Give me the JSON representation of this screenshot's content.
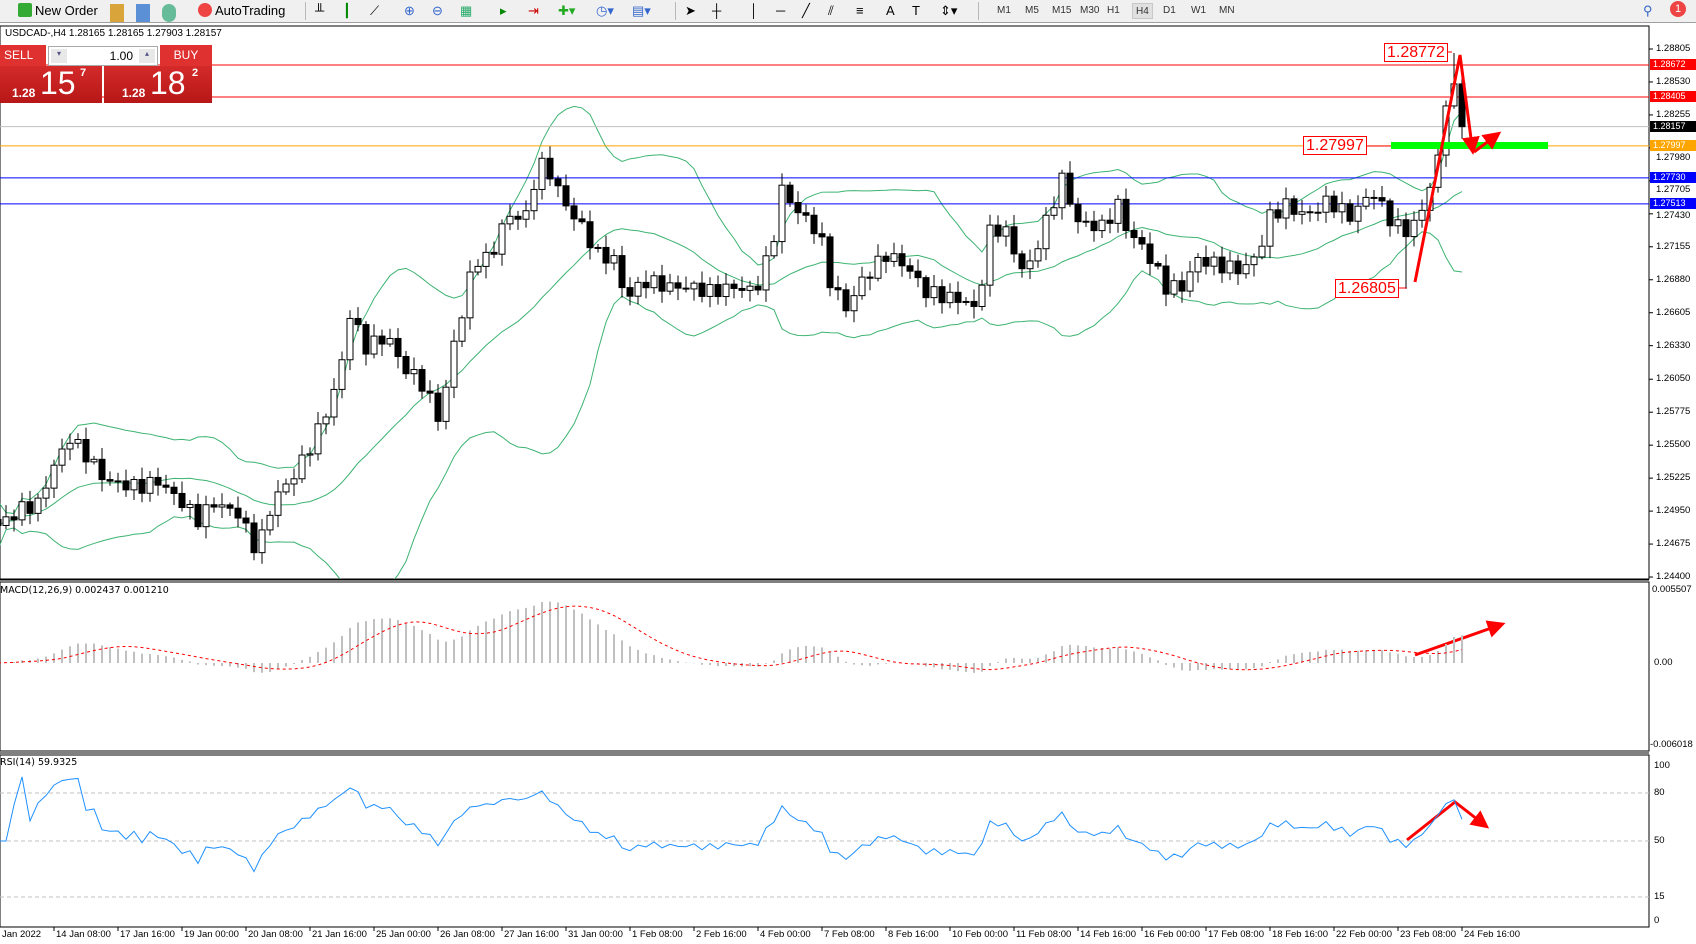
{
  "toolbar": {
    "new_order": "New Order",
    "autotrading": "AutoTrading",
    "timeframes": [
      "M1",
      "M5",
      "M15",
      "M30",
      "H1",
      "H4",
      "D1",
      "W1",
      "MN"
    ],
    "active_timeframe": "H4",
    "notification_count": "1"
  },
  "chart_title": "USDCAD-,H4  1.28165 1.28165 1.27903 1.28157",
  "trade_panel": {
    "sell": "SELL",
    "buy": "BUY",
    "lot": "1.00",
    "sell_small": "1.28",
    "sell_big": "15",
    "sell_sup": "7",
    "buy_small": "1.28",
    "buy_big": "18",
    "buy_sup": "2"
  },
  "colors": {
    "bull_bear": "#000000",
    "bands": "#3cb371",
    "macd_hist": "#c0c0c0",
    "macd_signal": "#ff0000",
    "rsi": "#1e90ff",
    "annotation": "#ff0000",
    "zone": "#00ff00"
  },
  "chart_data": {
    "type": "candlestick",
    "symbol": "USDCAD-",
    "timeframe": "H4",
    "price_ticks": [
      "1.28805",
      "1.28530",
      "1.28255",
      "1.27980",
      "1.27705",
      "1.27430",
      "1.27155",
      "1.26880",
      "1.26605",
      "1.26330",
      "1.26050",
      "1.25775",
      "1.25500",
      "1.25225",
      "1.24950",
      "1.24675",
      "1.24400"
    ],
    "ylim": [
      1.244,
      1.28805
    ],
    "time_labels": [
      "Jan 2022",
      "14 Jan 08:00",
      "17 Jan 16:00",
      "19 Jan 00:00",
      "20 Jan 08:00",
      "21 Jan 16:00",
      "25 Jan 00:00",
      "26 Jan 08:00",
      "27 Jan 16:00",
      "31 Jan 00:00",
      "1 Feb 08:00",
      "2 Feb 16:00",
      "4 Feb 00:00",
      "7 Feb 08:00",
      "8 Feb 16:00",
      "10 Feb 00:00",
      "11 Feb 08:00",
      "14 Feb 16:00",
      "16 Feb 00:00",
      "17 Feb 08:00",
      "18 Feb 16:00",
      "22 Feb 00:00",
      "23 Feb 08:00",
      "24 Feb 16:00"
    ],
    "approx_close_path": [
      [
        0,
        1.2483
      ],
      [
        3,
        1.2497
      ],
      [
        5,
        1.2501
      ],
      [
        7,
        1.2533
      ],
      [
        9,
        1.2556
      ],
      [
        11,
        1.2542
      ],
      [
        13.5,
        1.252
      ],
      [
        17.6,
        1.2515
      ],
      [
        20,
        1.252
      ],
      [
        23,
        1.2502
      ],
      [
        25,
        1.2488
      ],
      [
        27,
        1.2502
      ],
      [
        30,
        1.2493
      ],
      [
        32.4,
        1.2461
      ],
      [
        34.5,
        1.2506
      ],
      [
        36.5,
        1.252
      ],
      [
        38.5,
        1.2542
      ],
      [
        40.5,
        1.2569
      ],
      [
        42.6,
        1.2605
      ],
      [
        44,
        1.2659
      ],
      [
        46,
        1.2632
      ],
      [
        48.7,
        1.2641
      ],
      [
        50.7,
        1.2614
      ],
      [
        52.7,
        1.2605
      ],
      [
        55.4,
        1.2569
      ],
      [
        56.8,
        1.2632
      ],
      [
        58,
        1.2659
      ],
      [
        59.5,
        1.2705
      ],
      [
        61.5,
        1.2705
      ],
      [
        63.5,
        1.2741
      ],
      [
        66,
        1.2741
      ],
      [
        67.6,
        1.2786
      ],
      [
        69,
        1.2777
      ],
      [
        71,
        1.275
      ],
      [
        73,
        1.2732
      ],
      [
        75,
        1.2709
      ],
      [
        77,
        1.2705
      ],
      [
        78.4,
        1.2673
      ],
      [
        81,
        1.2687
      ],
      [
        84,
        1.2682
      ],
      [
        86.5,
        1.2682
      ],
      [
        89,
        1.2678
      ],
      [
        92,
        1.2682
      ],
      [
        94.6,
        1.2678
      ],
      [
        96.7,
        1.2714
      ],
      [
        98,
        1.2763
      ],
      [
        100,
        1.2745
      ],
      [
        102.7,
        1.2727
      ],
      [
        104,
        1.2687
      ],
      [
        106,
        1.2664
      ],
      [
        108,
        1.2687
      ],
      [
        111,
        1.2709
      ],
      [
        113.5,
        1.27
      ],
      [
        116,
        1.2678
      ],
      [
        119,
        1.2673
      ],
      [
        121.7,
        1.2669
      ],
      [
        122.4,
        1.2655
      ],
      [
        123.7,
        1.2727
      ],
      [
        125.7,
        1.2732
      ],
      [
        128.4,
        1.2691
      ],
      [
        130.5,
        1.2727
      ],
      [
        133,
        1.2772
      ],
      [
        135,
        1.2736
      ],
      [
        138,
        1.2732
      ],
      [
        140,
        1.275
      ],
      [
        141.3,
        1.2727
      ],
      [
        143.3,
        1.2714
      ],
      [
        146,
        1.2682
      ],
      [
        148,
        1.2682
      ],
      [
        150,
        1.2705
      ],
      [
        152.8,
        1.27
      ],
      [
        155.5,
        1.2696
      ],
      [
        157.5,
        1.2709
      ],
      [
        159,
        1.2741
      ],
      [
        161,
        1.275
      ],
      [
        163.6,
        1.2741
      ],
      [
        166.3,
        1.2754
      ],
      [
        169,
        1.2741
      ],
      [
        170.4,
        1.275
      ],
      [
        171.7,
        1.2763
      ],
      [
        173.7,
        1.2741
      ],
      [
        175.8,
        1.2727
      ],
      [
        177.8,
        1.2741
      ],
      [
        179,
        1.2768
      ],
      [
        180.5,
        1.2804
      ],
      [
        181.5,
        1.2862
      ],
      [
        182.3,
        1.2845
      ],
      [
        183,
        1.28157
      ]
    ],
    "horizontal_lines": [
      {
        "price": "1.28672",
        "color": "#ff0000"
      },
      {
        "price": "1.28405",
        "color": "#ff0000"
      },
      {
        "price": "1.28157",
        "color": "#000000",
        "line": "#c0c0c0"
      },
      {
        "price": "1.27997",
        "color": "#ffa500"
      },
      {
        "price": "1.27730",
        "color": "#0000ff"
      },
      {
        "price": "1.27513",
        "color": "#0000ff"
      }
    ],
    "annotations": {
      "high": "1.28772",
      "level": "1.27997",
      "low": "1.26805"
    },
    "indicators": {
      "bollinger": {
        "period": 20,
        "deviation": 2
      },
      "macd": {
        "label": "MACD(12,26,9) 0.002437 0.001210",
        "ticks": [
          "0.005507",
          "0.00",
          "-0.006018"
        ],
        "ylim": [
          -0.006018,
          0.005507
        ]
      },
      "rsi": {
        "label": "RSI(14) 59.9325",
        "ticks": [
          "100",
          "80",
          "50",
          "15",
          "0"
        ],
        "levels": [
          80,
          50,
          15
        ]
      }
    }
  }
}
